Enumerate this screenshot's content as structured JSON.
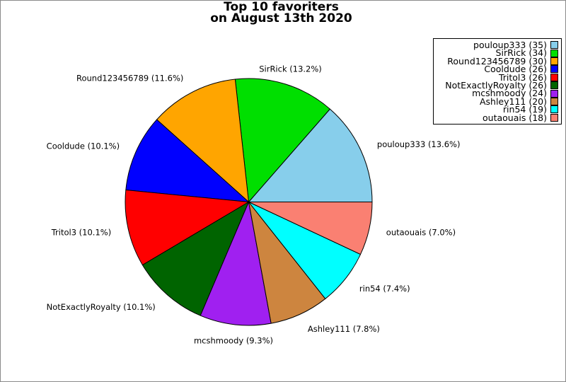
{
  "title": {
    "line1": "Top 10 favoriters",
    "line2": "on August 13th 2020"
  },
  "chart_data": {
    "type": "pie",
    "title": "Top 10 favoriters on August 13th 2020",
    "categories": [
      "pouloup333",
      "SirRick",
      "Round123456789",
      "Cooldude",
      "Tritol3",
      "NotExactlyRoyalty",
      "mcshmoody",
      "Ashley111",
      "rin54",
      "outaouais"
    ],
    "values": [
      35,
      34,
      30,
      26,
      26,
      26,
      24,
      20,
      19,
      18
    ],
    "percents": [
      13.6,
      13.2,
      11.6,
      10.1,
      10.1,
      10.1,
      9.3,
      7.8,
      7.4,
      7.0
    ],
    "slice_labels": [
      "pouloup333 (13.6%)",
      "SirRick (13.2%)",
      "Round123456789 (11.6%)",
      "Cooldude (10.1%)",
      "Tritol3 (10.1%)",
      "NotExactlyRoyalty (10.1%)",
      "mcshmoody (9.3%)",
      "Ashley111 (7.8%)",
      "rin54 (7.4%)",
      "outaouais (7.0%)"
    ],
    "legend_labels": [
      "pouloup333 (35)",
      "SirRick (34)",
      "Round123456789 (30)",
      "Cooldude (26)",
      "Tritol3 (26)",
      "NotExactlyRoyalty (26)",
      "mcshmoody (24)",
      "Ashley111 (20)",
      "rin54 (19)",
      "outaouais (18)"
    ],
    "colors": [
      "#87CEEB",
      "#00DF00",
      "#FFA500",
      "#0000FF",
      "#FF0000",
      "#006400",
      "#A020F0",
      "#CD853F",
      "#00FFFF",
      "#FA8072"
    ],
    "slice_edge_color": "#000000",
    "start_angle": 0,
    "direction": "counterclockwise",
    "legend_position": "upper right",
    "grid": false
  }
}
